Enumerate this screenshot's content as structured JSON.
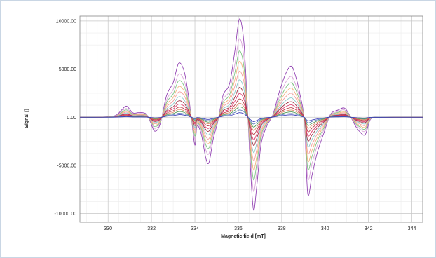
{
  "chart_data": {
    "type": "line",
    "title": "",
    "xlabel": "Magnetic field [mT]",
    "ylabel": "Signal []",
    "xlim": [
      328.7,
      344.5
    ],
    "ylim": [
      -10900,
      10500
    ],
    "xticks": [
      330,
      332,
      334,
      336,
      338,
      340,
      342,
      344
    ],
    "xtick_labels": [
      "330",
      "332",
      "334",
      "336",
      "338",
      "340",
      "342",
      "344"
    ],
    "yticks": [
      10000,
      5000,
      0,
      -5000,
      -10000
    ],
    "ytick_labels": [
      "10000.00",
      "5000.00",
      "0.00",
      "-5000.00",
      "-10000.00"
    ],
    "grid": true,
    "minor_grid": true,
    "legend": "none",
    "x": [
      328.7,
      329.5,
      330.3,
      330.6,
      330.85,
      331.15,
      331.45,
      331.75,
      331.95,
      332.15,
      332.4,
      332.7,
      333.0,
      333.25,
      333.5,
      333.7,
      333.85,
      334.0,
      334.1,
      334.3,
      334.5,
      334.65,
      334.85,
      335.05,
      335.3,
      335.6,
      335.85,
      336.05,
      336.25,
      336.4,
      336.55,
      336.7,
      336.85,
      337.05,
      337.3,
      337.6,
      337.9,
      338.2,
      338.45,
      338.65,
      338.85,
      339.05,
      339.2,
      339.4,
      339.65,
      339.95,
      340.25,
      340.6,
      340.9,
      341.15,
      341.4,
      341.6,
      341.85,
      342.1,
      342.5,
      343.2,
      344.5
    ],
    "series": [
      {
        "color": "#8e3bb0",
        "values": [
          0,
          0,
          150,
          700,
          1150,
          450,
          500,
          350,
          -500,
          -1450,
          -700,
          2300,
          3600,
          5600,
          4800,
          2300,
          -300,
          -2900,
          -900,
          -1800,
          -4200,
          -4700,
          -2200,
          -500,
          2300,
          3500,
          7000,
          10200,
          8000,
          2100,
          -4800,
          -9600,
          -7200,
          -2800,
          -1000,
          300,
          2700,
          4600,
          5300,
          4200,
          2300,
          -500,
          -7900,
          -6000,
          -3600,
          -1600,
          300,
          750,
          950,
          150,
          -900,
          -1500,
          -1800,
          -200,
          -50,
          0,
          0
        ]
      },
      {
        "color": "#d8a2d8",
        "values": [
          0,
          0,
          120,
          560,
          900,
          360,
          400,
          280,
          -400,
          -1160,
          -560,
          1840,
          2880,
          4480,
          3840,
          1840,
          -240,
          -2320,
          -720,
          -1440,
          -3360,
          -3760,
          -1760,
          -400,
          1840,
          2800,
          5600,
          8160,
          6400,
          1680,
          -3840,
          -7680,
          -5760,
          -2240,
          -800,
          240,
          2160,
          3680,
          4240,
          3360,
          1840,
          -400,
          -6320,
          -4800,
          -2880,
          -1280,
          240,
          600,
          760,
          120,
          -720,
          -1200,
          -1440,
          -160,
          -40,
          0,
          0
        ]
      },
      {
        "color": "#79c27f",
        "values": [
          0,
          0,
          100,
          470,
          760,
          300,
          330,
          230,
          -340,
          -980,
          -470,
          1550,
          2430,
          3780,
          3240,
          1550,
          -200,
          -1960,
          -610,
          -1220,
          -2840,
          -3170,
          -1490,
          -340,
          1550,
          2360,
          4720,
          6880,
          5400,
          1420,
          -3240,
          -6480,
          -4860,
          -1890,
          -680,
          200,
          1820,
          3110,
          3580,
          2840,
          1550,
          -340,
          -5330,
          -4050,
          -2430,
          -1080,
          200,
          510,
          640,
          100,
          -610,
          -1010,
          -1220,
          -140,
          -30,
          0,
          0
        ]
      },
      {
        "color": "#f3b27a",
        "values": [
          0,
          0,
          85,
          400,
          650,
          260,
          290,
          200,
          -290,
          -830,
          -400,
          1310,
          2050,
          3190,
          2740,
          1310,
          -170,
          -1650,
          -510,
          -1030,
          -2400,
          -2680,
          -1250,
          -290,
          1310,
          2000,
          3990,
          5810,
          4560,
          1200,
          -2740,
          -5470,
          -4100,
          -1600,
          -570,
          170,
          1540,
          2620,
          3020,
          2390,
          1310,
          -290,
          -4500,
          -3420,
          -2050,
          -910,
          170,
          430,
          540,
          85,
          -510,
          -860,
          -1030,
          -115,
          -30,
          0,
          0
        ]
      },
      {
        "color": "#f49b9b",
        "values": [
          0,
          0,
          70,
          330,
          540,
          210,
          240,
          165,
          -235,
          -680,
          -330,
          1080,
          1690,
          2630,
          2260,
          1080,
          -140,
          -1360,
          -420,
          -850,
          -1970,
          -2210,
          -1030,
          -235,
          1080,
          1650,
          3290,
          4790,
          3760,
          990,
          -2260,
          -4510,
          -3380,
          -1320,
          -470,
          140,
          1270,
          2160,
          2490,
          1970,
          1080,
          -235,
          -3710,
          -2820,
          -1690,
          -750,
          140,
          350,
          450,
          70,
          -420,
          -700,
          -850,
          -95,
          -25,
          0,
          0
        ]
      },
      {
        "color": "#88c8c8",
        "values": [
          0,
          0,
          57,
          270,
          440,
          170,
          190,
          135,
          -190,
          -550,
          -270,
          870,
          1370,
          2130,
          1820,
          870,
          -115,
          -1100,
          -340,
          -685,
          -1600,
          -1790,
          -835,
          -190,
          870,
          1330,
          2660,
          3880,
          3040,
          800,
          -1820,
          -3650,
          -2740,
          -1060,
          -380,
          115,
          1030,
          1750,
          2010,
          1600,
          870,
          -190,
          -3000,
          -2280,
          -1370,
          -610,
          115,
          285,
          360,
          57,
          -340,
          -570,
          -685,
          -76,
          -19,
          0,
          0
        ]
      },
      {
        "color": "#9c2a3c",
        "values": [
          0,
          0,
          46,
          215,
          350,
          137,
          152,
          107,
          -152,
          -440,
          -215,
          700,
          1090,
          1700,
          1460,
          700,
          -91,
          -880,
          -274,
          -550,
          -1280,
          -1430,
          -670,
          -152,
          700,
          1060,
          2130,
          3100,
          2430,
          640,
          -1460,
          -2920,
          -2190,
          -850,
          -304,
          91,
          820,
          1400,
          1610,
          1280,
          700,
          -152,
          -2400,
          -1820,
          -1090,
          -490,
          91,
          228,
          290,
          46,
          -274,
          -456,
          -550,
          -61,
          -15,
          0,
          0
        ]
      },
      {
        "color": "#e0366b",
        "values": [
          0,
          0,
          36,
          170,
          280,
          109,
          121,
          85,
          -121,
          -350,
          -170,
          560,
          870,
          1360,
          1160,
          560,
          -73,
          -700,
          -218,
          -437,
          -1020,
          -1140,
          -534,
          -121,
          560,
          850,
          1700,
          2470,
          1940,
          510,
          -1160,
          -2330,
          -1750,
          -680,
          -243,
          73,
          650,
          1110,
          1290,
          1020,
          560,
          -121,
          -1910,
          -1460,
          -870,
          -390,
          73,
          182,
          230,
          36,
          -218,
          -364,
          -437,
          -49,
          -12,
          0,
          0
        ]
      },
      {
        "color": "#b73a43",
        "values": [
          0,
          0,
          28,
          130,
          215,
          84,
          93,
          65,
          -93,
          -270,
          -130,
          430,
          670,
          1040,
          890,
          430,
          -56,
          -540,
          -167,
          -335,
          -780,
          -870,
          -410,
          -93,
          430,
          650,
          1300,
          1900,
          1490,
          390,
          -890,
          -1790,
          -1340,
          -520,
          -186,
          56,
          500,
          860,
          990,
          780,
          430,
          -93,
          -1470,
          -1120,
          -670,
          -300,
          56,
          140,
          177,
          28,
          -167,
          -280,
          -335,
          -37,
          -9,
          0,
          0
        ]
      },
      {
        "color": "#e08a6a",
        "values": [
          0,
          0,
          21,
          100,
          165,
          64,
          71,
          50,
          -71,
          -205,
          -100,
          330,
          510,
          800,
          680,
          330,
          -43,
          -410,
          -128,
          -256,
          -600,
          -670,
          -312,
          -71,
          330,
          500,
          1000,
          1450,
          1140,
          300,
          -680,
          -1370,
          -1020,
          -400,
          -142,
          43,
          380,
          650,
          750,
          600,
          330,
          -71,
          -1120,
          -850,
          -510,
          -228,
          43,
          107,
          135,
          21,
          -128,
          -213,
          -256,
          -28,
          -7,
          0,
          0
        ]
      },
      {
        "color": "#4e9a55",
        "values": [
          0,
          0,
          16,
          75,
          122,
          48,
          53,
          37,
          -53,
          -154,
          -75,
          244,
          380,
          590,
          510,
          244,
          -32,
          -308,
          -96,
          -192,
          -446,
          -500,
          -233,
          -53,
          244,
          372,
          742,
          1080,
          850,
          223,
          -510,
          -1020,
          -763,
          -297,
          -106,
          32,
          286,
          488,
          562,
          446,
          244,
          -53,
          -838,
          -636,
          -382,
          -170,
          32,
          80,
          101,
          16,
          -96,
          -159,
          -192,
          -21,
          -5,
          0,
          0
        ]
      },
      {
        "color": "#5a7ab8",
        "values": [
          0,
          0,
          11,
          52,
          85,
          33,
          37,
          26,
          -37,
          -107,
          -52,
          170,
          265,
          412,
          353,
          170,
          -22,
          -214,
          -66,
          -133,
          -310,
          -346,
          -162,
          -37,
          170,
          258,
          515,
          750,
          590,
          155,
          -353,
          -706,
          -530,
          -206,
          -74,
          22,
          199,
          339,
          390,
          310,
          170,
          -37,
          -582,
          -442,
          -265,
          -118,
          22,
          55,
          70,
          11,
          -66,
          -110,
          -133,
          -15,
          -4,
          0,
          0
        ]
      },
      {
        "color": "#3a3ab8",
        "values": [
          0,
          0,
          7,
          33,
          54,
          21,
          24,
          16,
          -24,
          -68,
          -33,
          108,
          169,
          263,
          225,
          108,
          -14,
          -136,
          -42,
          -85,
          -197,
          -220,
          -103,
          -24,
          108,
          164,
          328,
          478,
          376,
          99,
          -225,
          -450,
          -338,
          -131,
          -47,
          14,
          127,
          216,
          249,
          197,
          108,
          -24,
          -371,
          -282,
          -169,
          -75,
          14,
          35,
          45,
          7,
          -42,
          -70,
          -85,
          -9,
          -2,
          0,
          0
        ]
      }
    ]
  }
}
